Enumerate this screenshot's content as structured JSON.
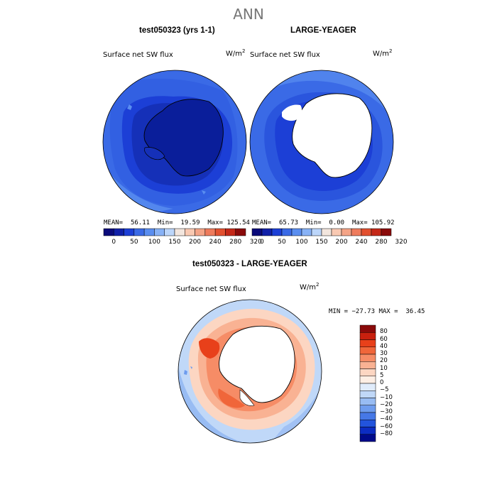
{
  "page": {
    "title": "ANN"
  },
  "panels": [
    {
      "title": "test050323 (yrs 1-1)",
      "variable": "Surface net SW flux",
      "units": "W/m",
      "units_sup": "2",
      "stats": {
        "mean_label": "MEAN=",
        "mean": "56.11",
        "min_label": "Min=",
        "min": "19.59",
        "max_label": "Max=",
        "max": "125.54"
      }
    },
    {
      "title": "LARGE-YEAGER",
      "variable": "Surface net SW flux",
      "units": "W/m",
      "units_sup": "2",
      "stats": {
        "mean_label": "MEAN=",
        "mean": "65.73",
        "min_label": "Min=",
        "min": "0.00",
        "max_label": "Max=",
        "max": "105.92"
      }
    }
  ],
  "top_colorbar": {
    "colors": [
      "#0a0a7a",
      "#1020a8",
      "#1c3fd6",
      "#3a6ae6",
      "#5a8ef0",
      "#88b2f6",
      "#bcd6fa",
      "#f2e6de",
      "#f9c9b2",
      "#f4a487",
      "#ee7b5c",
      "#e2502f",
      "#c42818",
      "#8a0a0a"
    ],
    "tick_labels": [
      "0",
      "50",
      "100",
      "150",
      "200",
      "240",
      "280",
      "320"
    ]
  },
  "difference": {
    "title": "test050323 - LARGE-YEAGER",
    "variable": "Surface net SW flux",
    "units": "W/m",
    "units_sup": "2",
    "minmax": "MIN = −27.73 MAX =  36.45"
  },
  "diff_colorbar": {
    "colors": [
      "#8a0a0a",
      "#c8200e",
      "#e8401a",
      "#f0663a",
      "#f68c66",
      "#f9b293",
      "#fcd6c2",
      "#fdeee4",
      "#e0ecfb",
      "#c0d8f8",
      "#98bcf3",
      "#6e9cee",
      "#4678e6",
      "#2254dc",
      "#0c2cc2",
      "#000a8a"
    ],
    "labels": [
      "80",
      "60",
      "40",
      "30",
      "20",
      "10",
      "5",
      "0",
      "−5",
      "−10",
      "−20",
      "−30",
      "−40",
      "−60",
      "−80"
    ]
  }
}
